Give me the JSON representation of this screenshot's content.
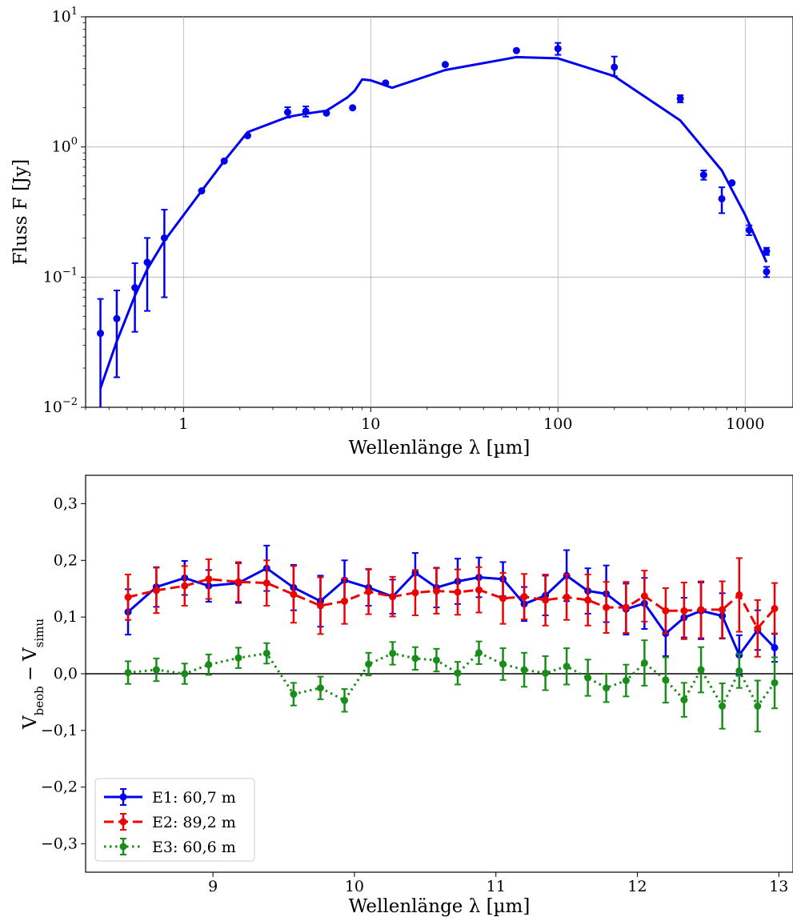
{
  "chart_data": [
    {
      "type": "line",
      "xscale": "log",
      "yscale": "log",
      "xlabel": "Wellenlänge λ [µm]",
      "ylabel": "Fluss F [Jy]",
      "xlim": [
        0.3,
        1800
      ],
      "ylim": [
        0.01,
        10
      ],
      "x_ticks": [
        {
          "value": 1,
          "label": "1"
        },
        {
          "value": 10,
          "label": "10"
        },
        {
          "value": 100,
          "label": "100"
        },
        {
          "value": 1000,
          "label": "1000"
        }
      ],
      "y_ticks": [
        {
          "value": 10,
          "base": "10",
          "exp": "1"
        },
        {
          "value": 1,
          "base": "10",
          "exp": "0"
        },
        {
          "value": 0.1,
          "base": "10",
          "exp": "−1"
        },
        {
          "value": 0.01,
          "base": "10",
          "exp": "−2"
        }
      ],
      "grid": true,
      "color": "#0000ee",
      "model": {
        "x": [
          0.36,
          0.44,
          0.55,
          0.64,
          0.79,
          1.25,
          1.65,
          2.2,
          3.6,
          4.5,
          5.8,
          7.5,
          8.2,
          9.0,
          10.0,
          11.0,
          13.0,
          25,
          60,
          100,
          200,
          450,
          750,
          1000,
          1300
        ],
        "y": [
          0.014,
          0.032,
          0.072,
          0.115,
          0.19,
          0.46,
          0.78,
          1.3,
          1.7,
          1.8,
          1.9,
          2.4,
          2.7,
          3.3,
          3.25,
          3.1,
          2.85,
          3.9,
          4.9,
          4.8,
          3.5,
          1.6,
          0.66,
          0.3,
          0.13
        ]
      },
      "observations": {
        "x": [
          0.36,
          0.44,
          0.55,
          0.64,
          0.79,
          1.25,
          1.65,
          2.2,
          3.6,
          4.5,
          5.8,
          8.0,
          12,
          25,
          60,
          100,
          200,
          450,
          600,
          850,
          750,
          1050,
          1300,
          1300
        ],
        "y": [
          0.037,
          0.048,
          0.083,
          0.13,
          0.2,
          0.46,
          0.78,
          1.22,
          1.85,
          1.88,
          1.82,
          2.0,
          3.1,
          4.3,
          5.5,
          5.7,
          4.1,
          2.35,
          0.61,
          0.53,
          0.4,
          0.23,
          0.158,
          0.11
        ],
        "yerr_low": [
          0.037,
          0.031,
          0.045,
          0.075,
          0.13,
          0,
          0,
          0,
          0.17,
          0.17,
          0,
          0,
          0,
          0,
          0,
          0.6,
          0.6,
          0.15,
          0.05,
          0,
          0.09,
          0.02,
          0.01,
          0.01
        ],
        "yerr_high": [
          0.031,
          0.031,
          0.045,
          0.07,
          0.13,
          0,
          0,
          0,
          0.17,
          0.17,
          0,
          0,
          0,
          0,
          0,
          0.6,
          0.85,
          0.15,
          0.05,
          0,
          0.09,
          0.02,
          0.01,
          0.01
        ]
      }
    },
    {
      "type": "line",
      "xlabel": "Wellenlänge λ [µm]",
      "ylabel_main": "V",
      "ylabel_sub1": "beob",
      "ylabel_minus": "−",
      "ylabel_sub2": "simu",
      "xlim": [
        8.1,
        13.1
      ],
      "ylim": [
        -0.35,
        0.35
      ],
      "x_ticks": [
        {
          "value": 9,
          "label": "9"
        },
        {
          "value": 10,
          "label": "10"
        },
        {
          "value": 11,
          "label": "11"
        },
        {
          "value": 12,
          "label": "12"
        },
        {
          "value": 13,
          "label": "13"
        }
      ],
      "y_ticks": [
        {
          "value": 0.3,
          "label": "0,3"
        },
        {
          "value": 0.2,
          "label": "0,2"
        },
        {
          "value": 0.1,
          "label": "0,1"
        },
        {
          "value": 0.0,
          "label": "0,0"
        },
        {
          "value": -0.1,
          "label": "−0,1"
        },
        {
          "value": -0.2,
          "label": "−0,2"
        },
        {
          "value": -0.3,
          "label": "−0,3"
        }
      ],
      "grid": false,
      "zero_line": true,
      "legend_position": "lower-left",
      "x": [
        8.4,
        8.6,
        8.8,
        8.97,
        9.18,
        9.38,
        9.57,
        9.76,
        9.93,
        10.1,
        10.27,
        10.43,
        10.58,
        10.73,
        10.88,
        11.05,
        11.2,
        11.35,
        11.5,
        11.65,
        11.78,
        11.92,
        12.05,
        12.2,
        12.33,
        12.45,
        12.6,
        12.72,
        12.85,
        12.97
      ],
      "series": [
        {
          "name": "E1: 60,7 m",
          "color": "#0000ee",
          "style": "solid",
          "values": [
            0.109,
            0.153,
            0.169,
            0.155,
            0.16,
            0.186,
            0.152,
            0.128,
            0.165,
            0.152,
            0.136,
            0.178,
            0.152,
            0.163,
            0.17,
            0.167,
            0.123,
            0.138,
            0.173,
            0.146,
            0.141,
            0.114,
            0.124,
            0.071,
            0.099,
            0.111,
            0.102,
            0.033,
            0.077,
            0.046
          ],
          "err": [
            0.04,
            0.035,
            0.03,
            0.028,
            0.035,
            0.04,
            0.04,
            0.045,
            0.035,
            0.032,
            0.03,
            0.035,
            0.035,
            0.04,
            0.035,
            0.03,
            0.03,
            0.035,
            0.045,
            0.04,
            0.05,
            0.045,
            0.045,
            0.04,
            0.035,
            0.05,
            0.04,
            0.035,
            0.035,
            0.025
          ]
        },
        {
          "name": "E2: 89,2 m",
          "color": "#ee0000",
          "style": "dashed",
          "values": [
            0.135,
            0.147,
            0.155,
            0.167,
            0.162,
            0.16,
            0.14,
            0.12,
            0.128,
            0.145,
            0.136,
            0.143,
            0.146,
            0.144,
            0.148,
            0.133,
            0.136,
            0.13,
            0.135,
            0.13,
            0.117,
            0.117,
            0.137,
            0.111,
            0.111,
            0.113,
            0.113,
            0.139,
            0.08,
            0.115
          ],
          "err": [
            0.04,
            0.04,
            0.035,
            0.035,
            0.035,
            0.04,
            0.05,
            0.05,
            0.04,
            0.04,
            0.035,
            0.04,
            0.04,
            0.04,
            0.04,
            0.045,
            0.04,
            0.045,
            0.04,
            0.045,
            0.045,
            0.045,
            0.045,
            0.04,
            0.05,
            0.05,
            0.05,
            0.065,
            0.05,
            0.045
          ]
        },
        {
          "name": "E3: 60,6 m",
          "color": "#1a8c1a",
          "style": "dotted",
          "values": [
            0.002,
            0.007,
            0.0,
            0.016,
            0.028,
            0.036,
            -0.036,
            -0.025,
            -0.047,
            0.017,
            0.036,
            0.027,
            0.024,
            0.001,
            0.037,
            0.017,
            0.007,
            0.001,
            0.013,
            -0.007,
            -0.025,
            -0.012,
            0.019,
            -0.011,
            -0.046,
            0.007,
            -0.057,
            0.005,
            -0.057,
            -0.016
          ],
          "err": [
            0.02,
            0.02,
            0.018,
            0.018,
            0.018,
            0.018,
            0.02,
            0.02,
            0.02,
            0.02,
            0.02,
            0.02,
            0.02,
            0.02,
            0.02,
            0.028,
            0.03,
            0.03,
            0.032,
            0.032,
            0.025,
            0.028,
            0.04,
            0.04,
            0.03,
            0.04,
            0.04,
            0.03,
            0.045,
            0.045
          ]
        }
      ]
    }
  ]
}
